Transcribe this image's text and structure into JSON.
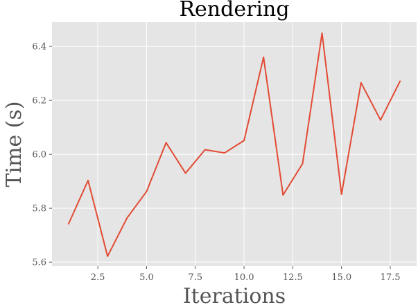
{
  "chart_data": {
    "type": "line",
    "title": "Rendering",
    "xlabel": "Iterations",
    "ylabel": "Time (s)",
    "grid": true,
    "xlim": [
      0.15,
      18.85
    ],
    "ylim": [
      5.585,
      6.49
    ],
    "xticks": [
      2.5,
      5.0,
      7.5,
      10.0,
      12.5,
      15.0,
      17.5
    ],
    "xtick_labels": [
      "2.5",
      "5.0",
      "7.5",
      "10.0",
      "12.5",
      "15.0",
      "17.5"
    ],
    "yticks": [
      5.6,
      5.8,
      6.0,
      6.2,
      6.4
    ],
    "ytick_labels": [
      "5.6",
      "5.8",
      "6.0",
      "6.2",
      "6.4"
    ],
    "series": [
      {
        "color": "#e24a33",
        "x": [
          1,
          2,
          3,
          4,
          5,
          6,
          7,
          8,
          9,
          10,
          11,
          12,
          13,
          14,
          15,
          16,
          17,
          18
        ],
        "values": [
          5.742,
          5.903,
          5.622,
          5.764,
          5.862,
          6.043,
          5.93,
          6.017,
          6.005,
          6.051,
          6.36,
          5.849,
          5.965,
          6.449,
          5.852,
          6.265,
          6.127,
          6.271
        ]
      }
    ],
    "colors": {
      "plot_background": "#e5e5e5",
      "grid": "#ffffff",
      "line": "#e24a33"
    }
  }
}
